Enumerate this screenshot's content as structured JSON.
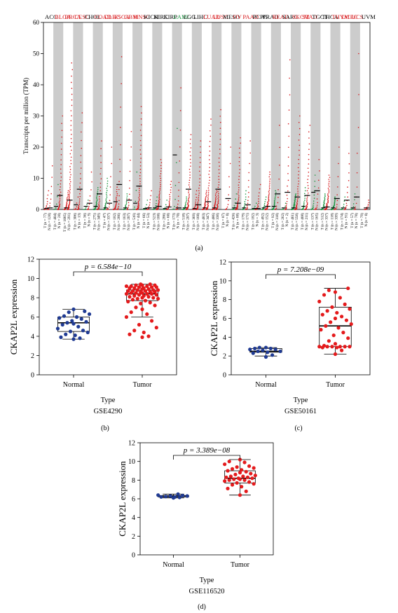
{
  "panel_labels": [
    "(a)",
    "(b)",
    "(c)",
    "(d)"
  ],
  "colors": {
    "tumor": "#d7191c",
    "normal": "#1a9641",
    "highlight_up": "#d7191c",
    "box_normal": "#1f3a93",
    "box_tumor": "#e41a1c",
    "shade": "#cccccc"
  },
  "chart_data": [
    {
      "id": "a",
      "type": "scatter",
      "ylabel": "Transcripts per million (TPM)",
      "ylim": [
        0,
        60
      ],
      "yticks": [
        0,
        10,
        20,
        30,
        40,
        50,
        60
      ],
      "grid": false,
      "cancers": [
        {
          "name": "ACC",
          "up": false,
          "T": 77,
          "N": 128,
          "tmax": 14,
          "nmax": 6,
          "tmed": 0.5,
          "nmed": 0.3,
          "nc": "t"
        },
        {
          "name": "BLCA",
          "up": true,
          "T": 404,
          "N": 28,
          "tmax": 30,
          "nmax": 8,
          "tmed": 4.5,
          "nmed": 1,
          "nc": "n"
        },
        {
          "name": "BRCA",
          "up": true,
          "T": 1085,
          "N": 291,
          "tmax": 47,
          "nmax": 6,
          "tmed": 3,
          "nmed": 0.5,
          "nc": "t"
        },
        {
          "name": "CESC",
          "up": true,
          "T": 306,
          "N": 13,
          "tmax": 31,
          "nmax": 4,
          "tmed": 6.5,
          "nmed": 1.5,
          "nc": "t"
        },
        {
          "name": "CHOL",
          "up": false,
          "T": 36,
          "N": 9,
          "tmax": 12,
          "nmax": 3,
          "tmed": 2,
          "nmed": 1,
          "nc": "n"
        },
        {
          "name": "COAD",
          "up": true,
          "T": 275,
          "N": 349,
          "tmax": 22,
          "nmax": 7,
          "tmed": 5,
          "nmed": 1,
          "nc": "n"
        },
        {
          "name": "DLBC",
          "up": true,
          "T": 47,
          "N": 337,
          "tmax": 20,
          "nmax": 10,
          "tmed": 2,
          "nmed": 0.5,
          "nc": "n"
        },
        {
          "name": "ESCA",
          "up": true,
          "T": 182,
          "N": 286,
          "tmax": 49,
          "nmax": 8,
          "tmed": 8,
          "nmed": 2.5,
          "nc": "t"
        },
        {
          "name": "GBM",
          "up": true,
          "T": 163,
          "N": 207,
          "tmax": 25,
          "nmax": 5,
          "tmed": 3,
          "nmed": 0.5,
          "nc": "n"
        },
        {
          "name": "HNSC",
          "up": true,
          "T": 519,
          "N": 44,
          "tmax": 33,
          "nmax": 12,
          "tmed": 7.5,
          "nmed": 2,
          "nc": "n"
        },
        {
          "name": "KICH",
          "up": false,
          "T": 66,
          "N": 53,
          "tmax": 6,
          "nmax": 3,
          "tmed": 0.5,
          "nmed": 0.3,
          "nc": "n"
        },
        {
          "name": "KIRC",
          "up": false,
          "T": 523,
          "N": 100,
          "tmax": 16,
          "nmax": 4,
          "tmed": 1,
          "nmed": 0.5,
          "nc": "n"
        },
        {
          "name": "KIRP",
          "up": false,
          "T": 286,
          "N": 60,
          "tmax": 9,
          "nmax": 3,
          "tmed": 0.8,
          "nmed": 0.3,
          "nc": "n"
        },
        {
          "name": "LAML",
          "up": false,
          "T": 173,
          "N": 70,
          "tmax": 39,
          "nmax": 26,
          "tmed": 0.5,
          "nmed": 17.5,
          "nc": "n"
        },
        {
          "name": "LGG",
          "up": false,
          "T": 518,
          "N": 207,
          "tmax": 24,
          "nmax": 4,
          "tmed": 6.5,
          "nmed": 0.5,
          "nc": "n"
        },
        {
          "name": "LIHC",
          "up": false,
          "T": 369,
          "N": 160,
          "tmax": 22,
          "nmax": 6,
          "tmed": 1.5,
          "nmed": 0.3,
          "nc": "t"
        },
        {
          "name": "LUAD",
          "up": true,
          "T": 483,
          "N": 347,
          "tmax": 29,
          "nmax": 6,
          "tmed": 2.5,
          "nmed": 0.5,
          "nc": "t"
        },
        {
          "name": "LUSC",
          "up": true,
          "T": 486,
          "N": 338,
          "tmax": 32,
          "nmax": 6,
          "tmed": 6.5,
          "nmed": 0.5,
          "nc": "t"
        },
        {
          "name": "MESO",
          "up": false,
          "T": 87,
          "N": 0,
          "tmax": 20,
          "nmax": 0,
          "tmed": 3.5,
          "nmed": 0,
          "nc": "n"
        },
        {
          "name": "OV",
          "up": true,
          "T": 426,
          "N": 88,
          "tmax": 23,
          "nmax": 5,
          "tmed": 2,
          "nmed": 0.5,
          "nc": "n"
        },
        {
          "name": "PAAD",
          "up": true,
          "T": 179,
          "N": 171,
          "tmax": 22,
          "nmax": 6,
          "tmed": 1.5,
          "nmed": 0.5,
          "nc": "n"
        },
        {
          "name": "PCPG",
          "up": false,
          "T": 182,
          "N": 3,
          "tmax": 8,
          "nmax": 2,
          "tmed": 0.3,
          "nmed": 0.3,
          "nc": "n"
        },
        {
          "name": "PRAD",
          "up": false,
          "T": 492,
          "N": 152,
          "tmax": 12,
          "nmax": 4,
          "tmed": 1,
          "nmed": 0.5,
          "nc": "n"
        },
        {
          "name": "READ",
          "up": true,
          "T": 92,
          "N": 318,
          "tmax": 27,
          "nmax": 6,
          "tmed": 5,
          "nmed": 1,
          "nc": "n"
        },
        {
          "name": "SARC",
          "up": false,
          "T": 262,
          "N": 2,
          "tmax": 48,
          "nmax": 2,
          "tmed": 5.5,
          "nmed": 0.5,
          "nc": "n"
        },
        {
          "name": "SKCM",
          "up": true,
          "T": 461,
          "N": 558,
          "tmax": 30,
          "nmax": 5,
          "tmed": 4,
          "nmed": 0.5,
          "nc": "n"
        },
        {
          "name": "STAD",
          "up": true,
          "T": 408,
          "N": 211,
          "tmax": 27,
          "nmax": 7,
          "tmed": 4.5,
          "nmed": 1,
          "nc": "n"
        },
        {
          "name": "TGCT",
          "up": false,
          "T": 137,
          "N": 165,
          "tmax": 16,
          "nmax": 11,
          "tmed": 6,
          "nmed": 5.5,
          "nc": "n"
        },
        {
          "name": "THCA",
          "up": false,
          "T": 512,
          "N": 337,
          "tmax": 11,
          "nmax": 5,
          "tmed": 0.8,
          "nmed": 0.5,
          "nc": "n"
        },
        {
          "name": "THYM",
          "up": true,
          "T": 118,
          "N": 339,
          "tmax": 20,
          "nmax": 4,
          "tmed": 3.5,
          "nmed": 0.5,
          "nc": "n"
        },
        {
          "name": "UCEC",
          "up": true,
          "T": 174,
          "N": 91,
          "tmax": 18,
          "nmax": 4,
          "tmed": 3,
          "nmed": 0.5,
          "nc": "n"
        },
        {
          "name": "UCS",
          "up": true,
          "T": 57,
          "N": 78,
          "tmax": 50,
          "nmax": 5,
          "tmed": 4,
          "nmed": 0.5,
          "nc": "n"
        },
        {
          "name": "UVM",
          "up": false,
          "T": 79,
          "N": 0,
          "tmax": 3,
          "nmax": 0,
          "tmed": 0.5,
          "nmed": 0,
          "nc": "n"
        }
      ]
    },
    {
      "id": "b",
      "type": "box",
      "dataset": "GSE4290",
      "xlabel": "Type",
      "ylabel": "CKAP2L expression",
      "p_label": "p = 6.584e−10",
      "categories": [
        "Normal",
        "Tumor"
      ],
      "ylim": [
        0,
        12
      ],
      "yticks": [
        0,
        2,
        4,
        6,
        8,
        10,
        12
      ],
      "boxes": [
        {
          "group": "Normal",
          "whisker_low": 3.7,
          "q1": 4.5,
          "median": 5.4,
          "q3": 6.0,
          "whisker_high": 6.8,
          "points": [
            3.7,
            3.8,
            3.9,
            4.1,
            4.2,
            4.4,
            4.5,
            4.6,
            4.8,
            5.0,
            5.2,
            5.3,
            5.4,
            5.5,
            5.6,
            5.8,
            5.9,
            6.0,
            6.1,
            6.3,
            6.5,
            6.6,
            6.8
          ]
        },
        {
          "group": "Tumor",
          "whisker_low": 6.0,
          "q1": 7.7,
          "median": 8.4,
          "q3": 8.8,
          "whisker_high": 9.4,
          "points": [
            3.9,
            4.0,
            4.2,
            4.4,
            4.6,
            4.9,
            5.2,
            5.6,
            6.0,
            6.3,
            6.5,
            6.8,
            7.0,
            7.2,
            7.4,
            7.5,
            7.6,
            7.7,
            7.8,
            7.9,
            7.9,
            8.0,
            8.0,
            8.1,
            8.1,
            8.2,
            8.2,
            8.3,
            8.3,
            8.4,
            8.4,
            8.4,
            8.5,
            8.5,
            8.5,
            8.6,
            8.6,
            8.6,
            8.7,
            8.7,
            8.7,
            8.8,
            8.8,
            8.8,
            8.9,
            8.9,
            9.0,
            9.0,
            9.0,
            9.1,
            9.1,
            9.1,
            9.2,
            9.2,
            9.2,
            9.3,
            9.3,
            9.3,
            9.4,
            9.4
          ]
        }
      ]
    },
    {
      "id": "c",
      "type": "box",
      "dataset": "GSE50161",
      "xlabel": "Type",
      "ylabel": "CKAP2L expression",
      "p_label": "p = 7.208e−09",
      "categories": [
        "Normal",
        "Tumor"
      ],
      "ylim": [
        0,
        12
      ],
      "yticks": [
        0,
        2,
        4,
        6,
        8,
        10,
        12
      ],
      "boxes": [
        {
          "group": "Normal",
          "whisker_low": 2.0,
          "q1": 2.4,
          "median": 2.5,
          "q3": 2.8,
          "whisker_high": 2.9,
          "points": [
            1.9,
            2.1,
            2.3,
            2.4,
            2.5,
            2.5,
            2.6,
            2.7,
            2.7,
            2.8,
            2.8,
            2.9,
            2.9
          ]
        },
        {
          "group": "Tumor",
          "whisker_low": 2.2,
          "q1": 3.0,
          "median": 5.2,
          "q3": 7.2,
          "whisker_high": 9.2,
          "points": [
            2.2,
            2.6,
            2.9,
            2.9,
            3.0,
            3.0,
            3.0,
            3.0,
            3.0,
            3.0,
            3.1,
            3.3,
            3.6,
            3.9,
            4.2,
            4.5,
            4.8,
            5.0,
            5.2,
            5.4,
            5.6,
            5.8,
            6.0,
            6.2,
            6.4,
            6.6,
            6.8,
            7.0,
            7.2,
            7.5,
            7.8,
            8.2,
            8.5,
            8.8,
            9.0,
            9.2
          ]
        }
      ]
    },
    {
      "id": "d",
      "type": "box",
      "dataset": "GSE116520",
      "xlabel": "Type",
      "ylabel": "CKAP2L expression",
      "p_label": "p = 3.389e−08",
      "categories": [
        "Normal",
        "Tumor"
      ],
      "ylim": [
        0,
        12
      ],
      "yticks": [
        0,
        2,
        4,
        6,
        8,
        10,
        12
      ],
      "boxes": [
        {
          "group": "Normal",
          "whisker_low": 6.1,
          "q1": 6.2,
          "median": 6.3,
          "q3": 6.35,
          "whisker_high": 6.5,
          "points": [
            6.1,
            6.15,
            6.2,
            6.2,
            6.25,
            6.3,
            6.3,
            6.35,
            6.4,
            6.5
          ]
        },
        {
          "group": "Tumor",
          "whisker_low": 6.4,
          "q1": 7.7,
          "median": 8.2,
          "q3": 9.0,
          "whisker_high": 10.2,
          "points": [
            6.4,
            6.8,
            7.1,
            7.3,
            7.5,
            7.6,
            7.7,
            7.8,
            7.9,
            8.0,
            8.0,
            8.1,
            8.1,
            8.2,
            8.2,
            8.3,
            8.3,
            8.4,
            8.4,
            8.5,
            8.6,
            8.7,
            8.8,
            8.9,
            9.0,
            9.1,
            9.2,
            9.3,
            9.4,
            9.5,
            9.7,
            9.9,
            10.0,
            10.2
          ]
        }
      ]
    }
  ]
}
